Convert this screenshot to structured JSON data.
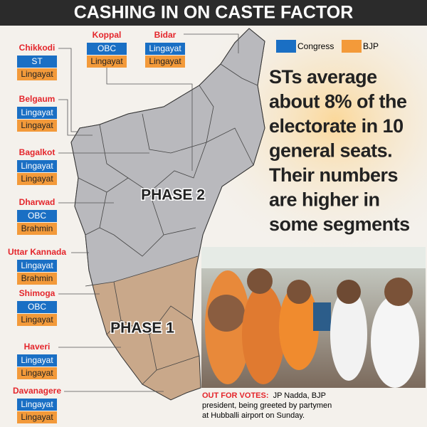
{
  "title": "CASHING IN ON CASTE FACTOR",
  "legend": [
    "Congress",
    "BJP"
  ],
  "phases": [
    "PHASE 2",
    "PHASE 1"
  ],
  "note_lines": [
    "STs average",
    "about 8% of the",
    "electorate in 10",
    "general seats.",
    "Their numbers",
    "are higher in",
    "some segments"
  ],
  "constituencies": [
    {
      "name": "Chikkodi",
      "congress": "ST",
      "bjp": "Lingayat"
    },
    {
      "name": "Belgaum",
      "congress": "Lingayat",
      "bjp": "Lingayat"
    },
    {
      "name": "Bagalkot",
      "congress": "Lingayat",
      "bjp": "Lingayat"
    },
    {
      "name": "Dharwad",
      "congress": "OBC",
      "bjp": "Brahmin"
    },
    {
      "name": "Uttar Kannada",
      "congress": "Lingayat",
      "bjp": "Brahmin"
    },
    {
      "name": "Shimoga",
      "congress": "OBC",
      "bjp": "Lingayat"
    },
    {
      "name": "Haveri",
      "congress": "Lingayat",
      "bjp": "Lingayat"
    },
    {
      "name": "Davanagere",
      "congress": "Lingayat",
      "bjp": "Lingayat"
    },
    {
      "name": "Koppal",
      "congress": "OBC",
      "bjp": "Lingayat"
    },
    {
      "name": "Bidar",
      "congress": "Lingayat",
      "bjp": "Lingayat"
    }
  ],
  "caption": {
    "lead": "OUT FOR VOTES:",
    "lines": [
      "JP Nadda, BJP",
      "president, being greeted by partymen",
      "at Hubballi airport on Sunday."
    ]
  }
}
